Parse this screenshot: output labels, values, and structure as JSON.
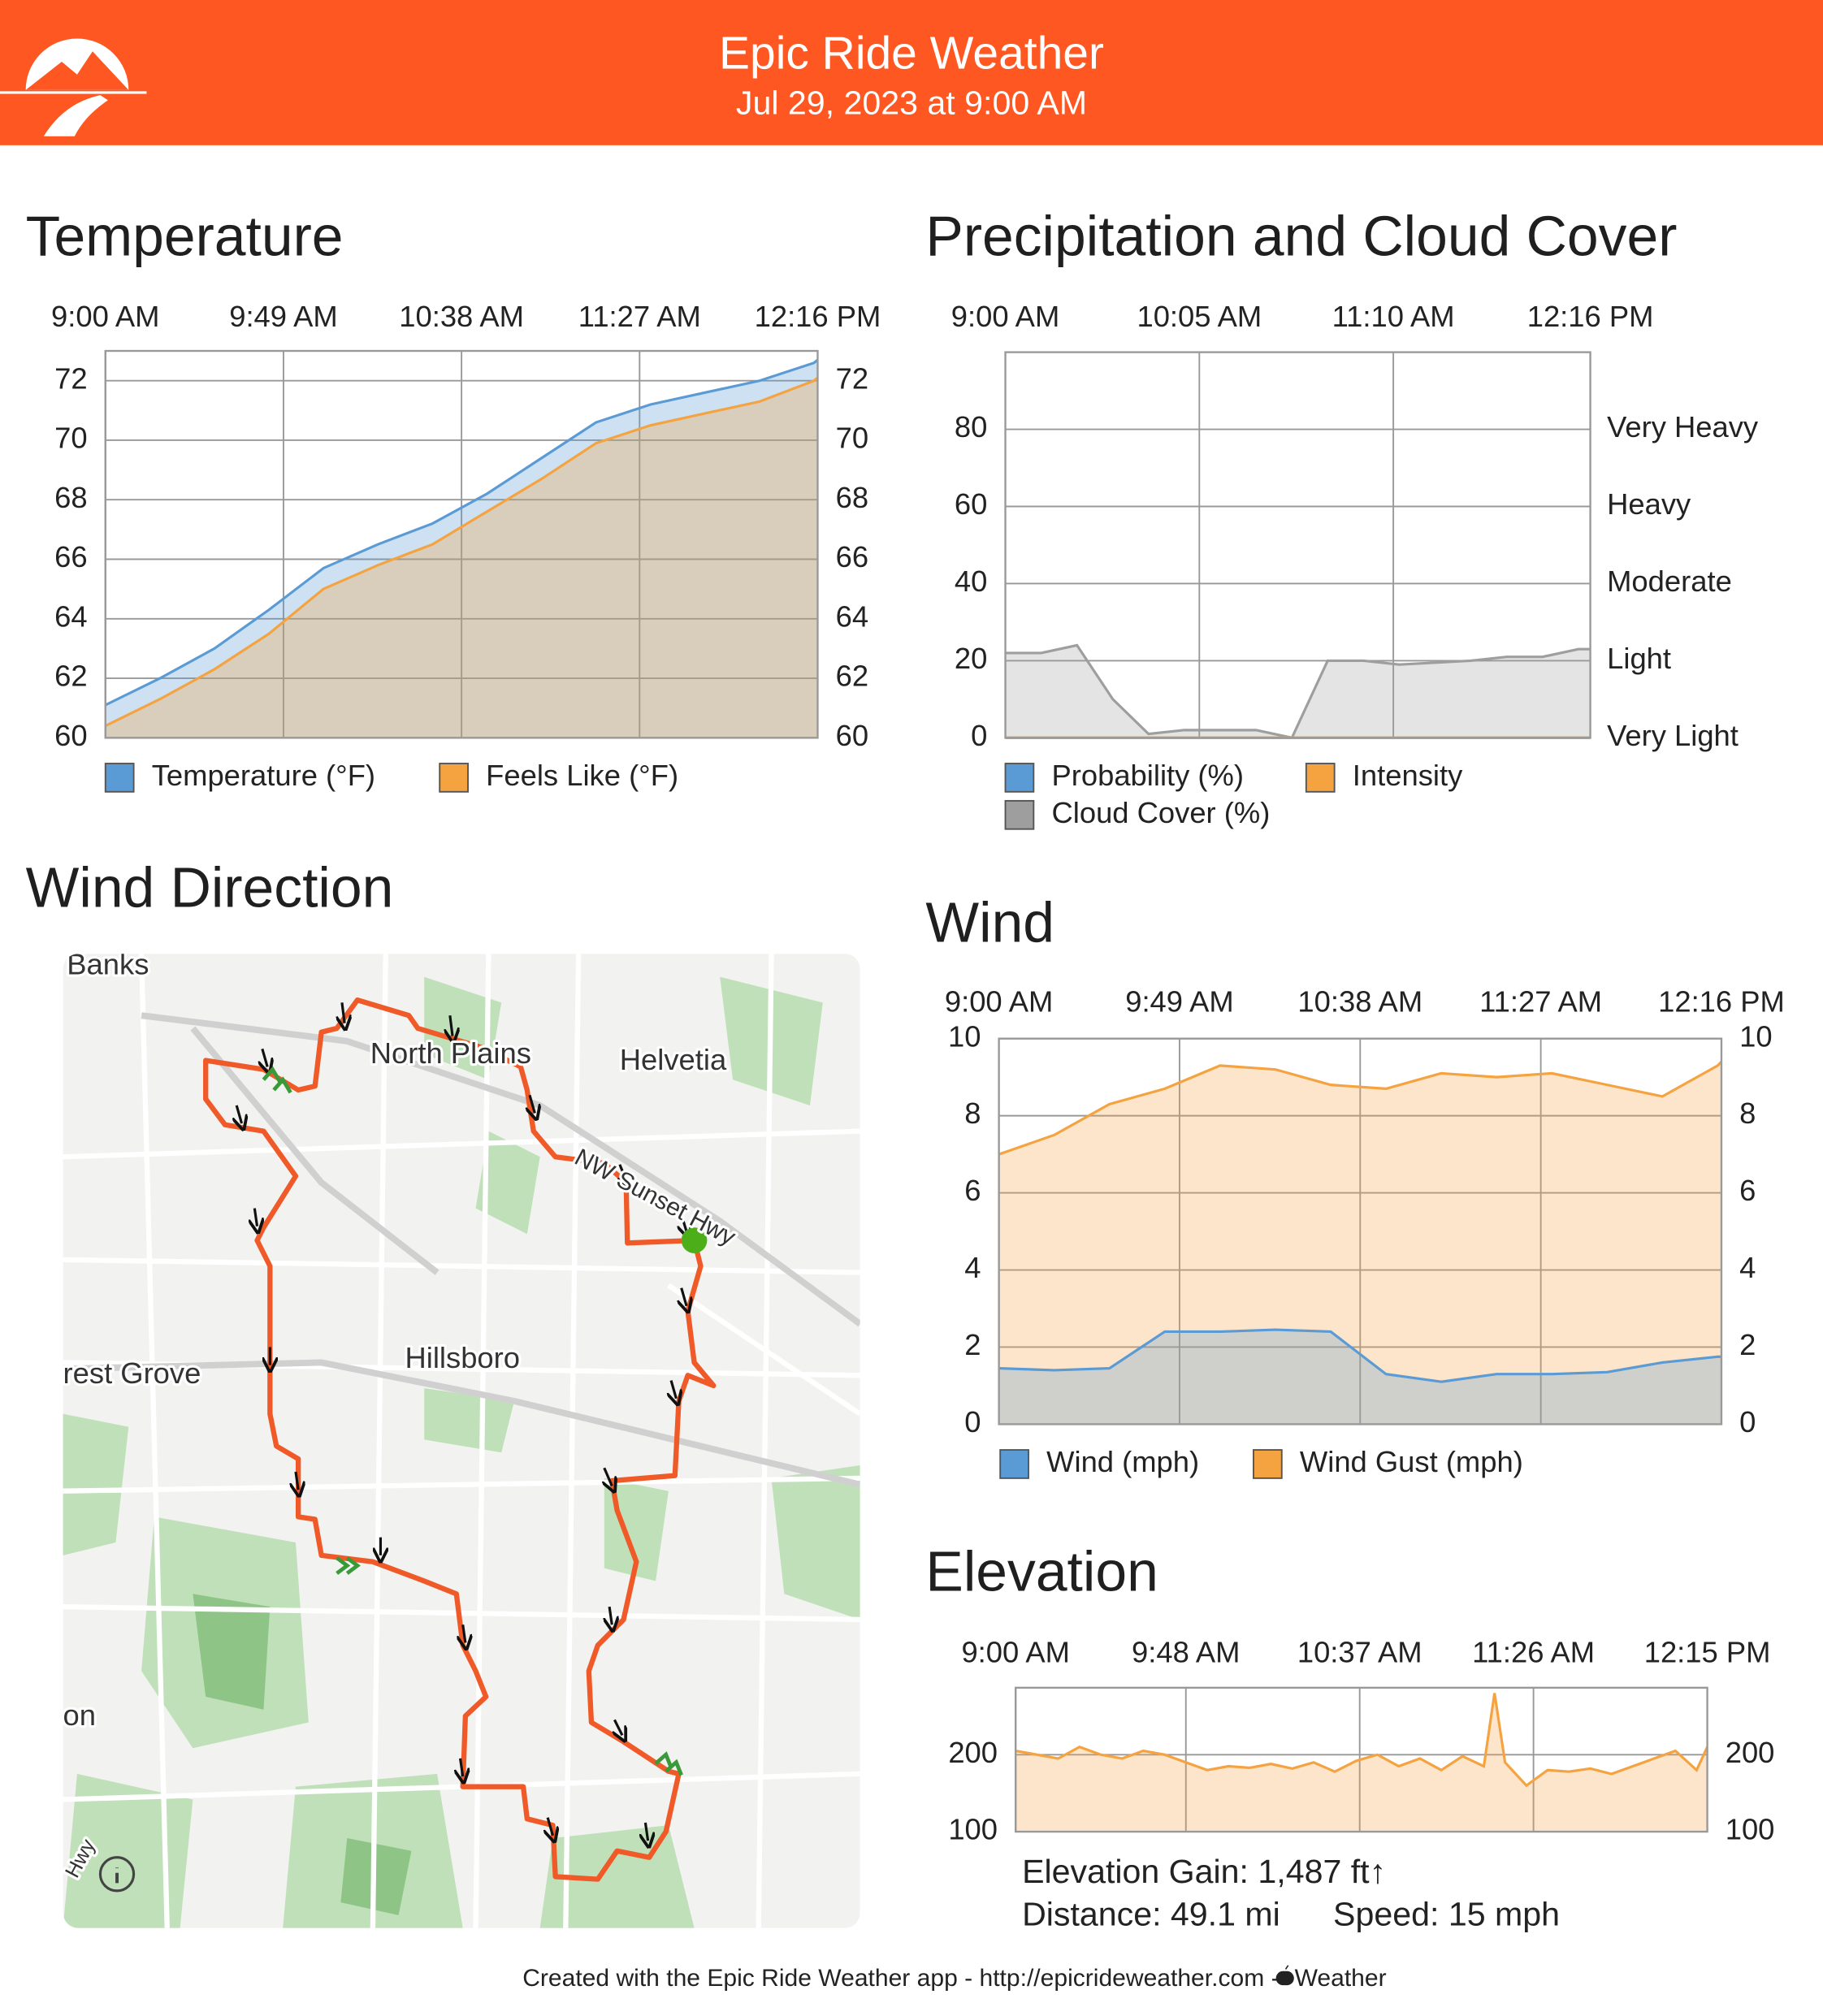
{
  "header": {
    "title": "Epic Ride Weather",
    "subtitle": "Jul 29, 2023 at 9:00 AM"
  },
  "chart_data": [
    {
      "type": "area",
      "title": "Temperature",
      "x": [
        9,
        9.25,
        9.5,
        9.75,
        10,
        10.25,
        10.5,
        10.75,
        11,
        11.25,
        11.5,
        11.75,
        12,
        12.25,
        12.2667
      ],
      "xlim": [
        9,
        12.2667
      ],
      "xticks": [
        {
          "value": 9,
          "label": "9:00 AM"
        },
        {
          "value": 9.8167,
          "label": "9:49 AM"
        },
        {
          "value": 10.6333,
          "label": "10:38 AM"
        },
        {
          "value": 11.45,
          "label": "11:27 AM"
        },
        {
          "value": 12.2667,
          "label": "12:16 PM"
        }
      ],
      "ylim": [
        60,
        73
      ],
      "yticks": [
        60,
        62,
        64,
        66,
        68,
        70,
        72
      ],
      "grid": true,
      "series": [
        {
          "name": "Temperature (°F)",
          "color": "#5b9bd5",
          "values": [
            61.1,
            62.0,
            63.0,
            64.3,
            65.7,
            66.5,
            67.2,
            68.2,
            69.4,
            70.6,
            71.2,
            71.6,
            72.0,
            72.6,
            72.7
          ]
        },
        {
          "name": "Feels Like (°F)",
          "color": "#f4a340",
          "values": [
            60.4,
            61.3,
            62.3,
            63.5,
            65.0,
            65.8,
            66.5,
            67.6,
            68.7,
            69.9,
            70.5,
            70.9,
            71.3,
            72.0,
            72.1
          ]
        }
      ]
    },
    {
      "type": "area",
      "title": "Precipitation and Cloud Cover",
      "x": [
        9,
        9.2,
        9.4,
        9.6,
        9.8,
        10,
        10.2,
        10.4,
        10.6,
        10.8,
        11,
        11.2,
        11.4,
        11.6,
        11.8,
        12,
        12.2,
        12.2667
      ],
      "xlim": [
        9,
        12.2667
      ],
      "xticks": [
        {
          "value": 9,
          "label": "9:00 AM"
        },
        {
          "value": 10.0833,
          "label": "10:05 AM"
        },
        {
          "value": 11.1667,
          "label": "11:10 AM"
        },
        {
          "value": 12.2667,
          "label": "12:16 PM"
        }
      ],
      "ylim": [
        0,
        100
      ],
      "yticks": [
        0,
        20,
        40,
        60,
        80
      ],
      "y2lim": [
        0,
        100
      ],
      "y2ticks": [
        {
          "value": 0,
          "label": "Very Light"
        },
        {
          "value": 20,
          "label": "Light"
        },
        {
          "value": 40,
          "label": "Moderate"
        },
        {
          "value": 60,
          "label": "Heavy"
        },
        {
          "value": 80,
          "label": "Very Heavy"
        }
      ],
      "grid": true,
      "series": [
        {
          "name": "Probability (%)",
          "color": "#5b9bd5",
          "values": [
            0,
            0,
            0,
            0,
            0,
            0,
            0,
            0,
            0,
            0,
            0,
            0,
            0,
            0,
            0,
            0,
            0,
            0
          ]
        },
        {
          "name": "Intensity",
          "color": "#f4a340",
          "axis": "y2",
          "values": [
            0,
            0,
            0,
            0,
            0,
            0,
            0,
            0,
            0,
            0,
            0,
            0,
            0,
            0,
            0,
            0,
            0,
            0
          ]
        },
        {
          "name": "Cloud Cover (%)",
          "color": "#9e9e9e",
          "values": [
            22,
            22,
            24,
            10,
            1,
            2,
            2,
            2,
            0,
            20,
            20,
            19,
            19.5,
            20,
            21,
            21,
            23,
            23
          ]
        }
      ]
    },
    {
      "type": "area",
      "title": "Wind",
      "x": [
        9,
        9.25,
        9.5,
        9.75,
        10,
        10.25,
        10.5,
        10.75,
        11,
        11.25,
        11.5,
        11.75,
        12,
        12.25,
        12.2667
      ],
      "xlim": [
        9,
        12.2667
      ],
      "xticks": [
        {
          "value": 9,
          "label": "9:00 AM"
        },
        {
          "value": 9.8167,
          "label": "9:49 AM"
        },
        {
          "value": 10.6333,
          "label": "10:38 AM"
        },
        {
          "value": 11.45,
          "label": "11:27 AM"
        },
        {
          "value": 12.2667,
          "label": "12:16 PM"
        }
      ],
      "ylim": [
        0,
        10
      ],
      "yticks": [
        0,
        2,
        4,
        6,
        8,
        10
      ],
      "grid": true,
      "series": [
        {
          "name": "Wind (mph)",
          "color": "#5b9bd5",
          "values": [
            1.45,
            1.4,
            1.45,
            2.4,
            2.4,
            2.45,
            2.4,
            1.3,
            1.1,
            1.3,
            1.3,
            1.35,
            1.6,
            1.75,
            1.75
          ]
        },
        {
          "name": "Wind Gust (mph)",
          "color": "#f4a340",
          "values": [
            7.0,
            7.5,
            8.3,
            8.7,
            9.3,
            9.2,
            8.8,
            8.7,
            9.1,
            9.0,
            9.1,
            8.8,
            8.5,
            9.3,
            9.4
          ]
        }
      ]
    },
    {
      "type": "area",
      "title": "Elevation",
      "x": [
        9,
        9.1,
        9.2,
        9.3,
        9.4,
        9.5,
        9.6,
        9.7,
        9.8,
        9.9,
        10,
        10.1,
        10.2,
        10.3,
        10.4,
        10.5,
        10.6,
        10.7,
        10.8,
        10.9,
        11,
        11.1,
        11.2,
        11.25,
        11.3,
        11.4,
        11.5,
        11.6,
        11.7,
        11.8,
        11.9,
        12,
        12.1,
        12.2,
        12.25
      ],
      "xlim": [
        9,
        12.25
      ],
      "xticks": [
        {
          "value": 9,
          "label": "9:00 AM"
        },
        {
          "value": 9.8,
          "label": "9:48 AM"
        },
        {
          "value": 10.6167,
          "label": "10:37 AM"
        },
        {
          "value": 11.4333,
          "label": "11:26 AM"
        },
        {
          "value": 12.25,
          "label": "12:15 PM"
        }
      ],
      "ylim": [
        100,
        287
      ],
      "yticks": [
        100,
        200
      ],
      "grid": true,
      "color": "#f4a340",
      "values": [
        205,
        200,
        195,
        210,
        200,
        195,
        205,
        200,
        190,
        180,
        185,
        183,
        188,
        182,
        190,
        178,
        192,
        200,
        185,
        195,
        180,
        198,
        185,
        280,
        190,
        160,
        180,
        178,
        182,
        175,
        185,
        195,
        205,
        180,
        210
      ]
    }
  ],
  "map": {
    "title": "Wind Direction",
    "labels": [
      "Banks",
      "North Plains",
      "Helvetia",
      "NW Sunset Hwy",
      "Hillsboro",
      "rest Grove",
      "on",
      "Hwy"
    ]
  },
  "elevation_stats": {
    "gain": "Elevation Gain: 1,487 ft↑",
    "distance": "Distance: 49.1 mi",
    "speed": "Speed: 15 mph"
  },
  "footer": {
    "text": "Created with the Epic Ride Weather app - http://epicrideweather.com - ",
    "source": "Weather"
  }
}
